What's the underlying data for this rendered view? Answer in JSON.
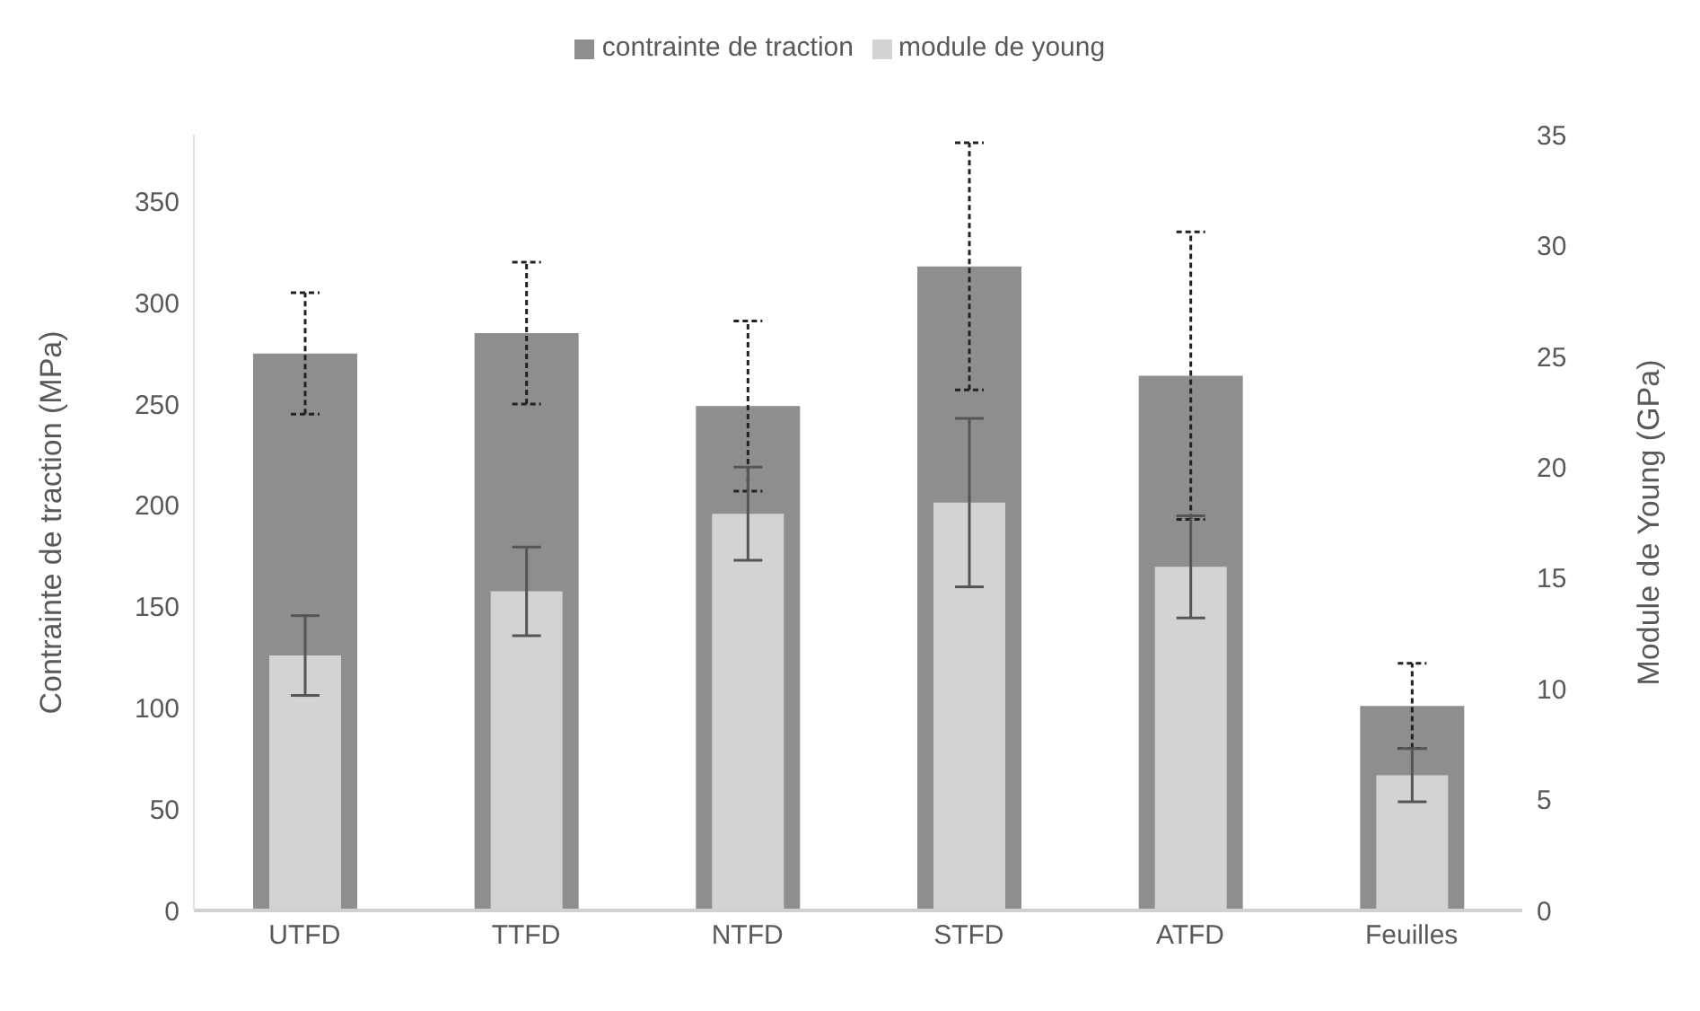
{
  "chart_data": {
    "type": "bar",
    "categories": [
      "UTFD",
      "TTFD",
      "NTFD",
      "STFD",
      "ATFD",
      "Feuilles"
    ],
    "ylabel": "Contrainte de traction (MPa)",
    "y2label": "Module de Young (GPa)",
    "ylim": [
      0,
      383
    ],
    "yticks": [
      0,
      50,
      100,
      150,
      200,
      250,
      300,
      350
    ],
    "y2lim": [
      0,
      35
    ],
    "y2ticks": [
      0,
      5,
      10,
      15,
      20,
      25,
      30,
      35
    ],
    "legend": "top",
    "grid": false,
    "series": [
      {
        "name": "contrainte de traction",
        "color": "#8e8e8e",
        "values": [
          275,
          285,
          249,
          318,
          264,
          101
        ],
        "errors": [
          30,
          35,
          42,
          61,
          71,
          21
        ]
      },
      {
        "name": "module de young",
        "color": "#d3d3d3",
        "axis": "y2",
        "values": [
          11.5,
          14.4,
          17.9,
          18.4,
          15.5,
          6.1
        ],
        "errors": [
          1.8,
          2,
          2.1,
          3.8,
          2.3,
          1.2
        ]
      }
    ]
  }
}
